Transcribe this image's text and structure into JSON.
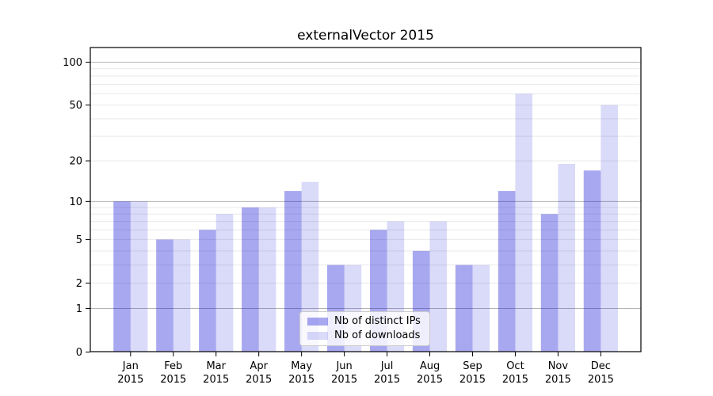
{
  "chart_data": {
    "type": "bar",
    "title": "externalVector 2015",
    "categories": [
      "Jan",
      "Feb",
      "Mar",
      "Apr",
      "May",
      "Jun",
      "Jul",
      "Aug",
      "Sep",
      "Oct",
      "Nov",
      "Dec"
    ],
    "category_year": "2015",
    "series": [
      {
        "name": "Nb of distinct IPs",
        "values": [
          10,
          5,
          6,
          9,
          12,
          3,
          6,
          4,
          3,
          12,
          8,
          17
        ],
        "color": "rgba(6,6,212,0.35)"
      },
      {
        "name": "Nb of downloads",
        "values": [
          10,
          5,
          8,
          9,
          14,
          3,
          7,
          7,
          3,
          60,
          19,
          50
        ],
        "color": "rgba(6,6,212,0.15)"
      }
    ],
    "yscale": "log1p",
    "ylim": [
      0,
      127
    ],
    "yticks": [
      0,
      1,
      2,
      5,
      10,
      20,
      50,
      100
    ],
    "major_gridlines": [
      1,
      10,
      100
    ],
    "minor_gridlines": [
      2,
      3,
      4,
      5,
      6,
      7,
      8,
      9,
      20,
      30,
      40,
      50,
      60,
      70,
      80,
      90
    ],
    "grid": true,
    "legend_position": "lower center",
    "colors": {
      "grid_minor": "#e9e9e9",
      "grid_major": "#b4b4b4",
      "axis": "#000000",
      "background": "#ffffff"
    }
  }
}
